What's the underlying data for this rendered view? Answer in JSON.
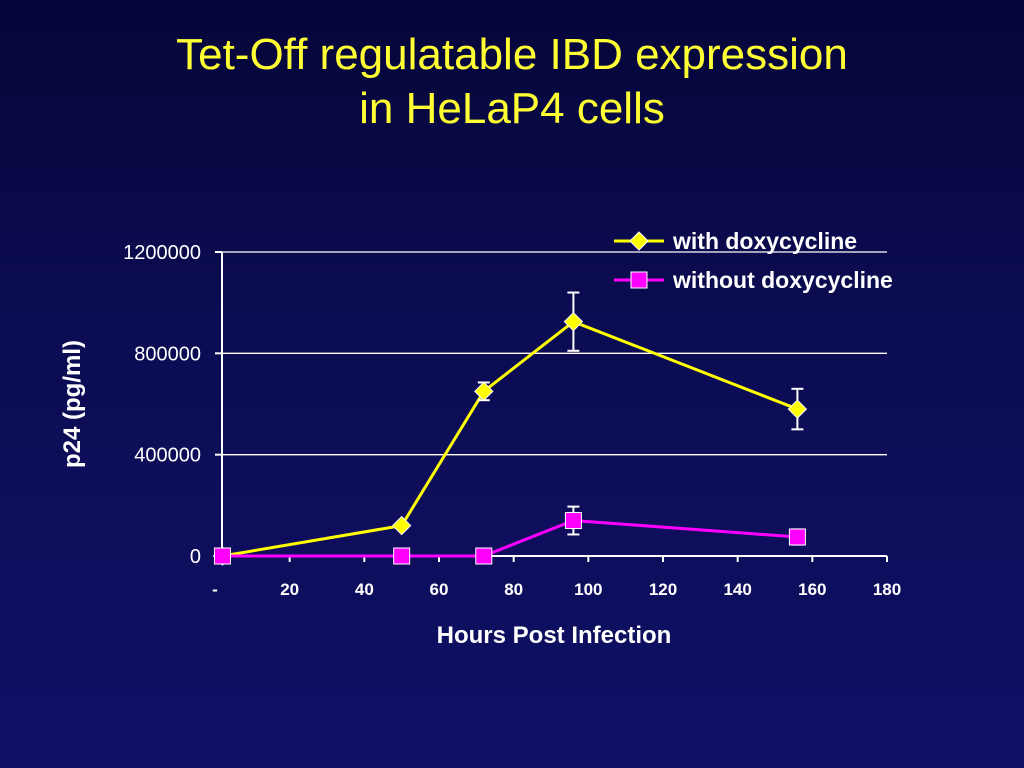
{
  "slide": {
    "title_line1": "Tet-Off regulatable IBD expression",
    "title_line2": "in HeLaP4 cells"
  },
  "chart_data": {
    "type": "line",
    "xlabel": "Hours Post Infection",
    "ylabel": "p24 (pg/ml)",
    "xlim": [
      0,
      180
    ],
    "ylim": [
      0,
      1200000
    ],
    "x_ticks": [
      0,
      20,
      40,
      60,
      80,
      100,
      120,
      140,
      160,
      180
    ],
    "x_tick_labels": [
      "-",
      "20",
      "40",
      "60",
      "80",
      "100",
      "120",
      "140",
      "160",
      "180"
    ],
    "y_ticks": [
      0,
      400000,
      800000,
      1200000
    ],
    "y_tick_labels": [
      "0",
      "400000",
      "800000",
      "1200000"
    ],
    "grid": "horizontal",
    "legend_position": "top-right",
    "series": [
      {
        "name": "with doxycycline",
        "color": "#ffff00",
        "marker": "diamond",
        "x": [
          2,
          50,
          72,
          96,
          156
        ],
        "y": [
          0,
          120000,
          650000,
          925000,
          580000
        ],
        "error": [
          null,
          null,
          35000,
          115000,
          80000
        ]
      },
      {
        "name": "without doxycycline",
        "color": "#ff00ff",
        "marker": "square",
        "x": [
          2,
          50,
          72,
          96,
          156
        ],
        "y": [
          0,
          0,
          0,
          140000,
          75000
        ],
        "error": [
          null,
          null,
          null,
          55000,
          30000
        ]
      }
    ]
  }
}
